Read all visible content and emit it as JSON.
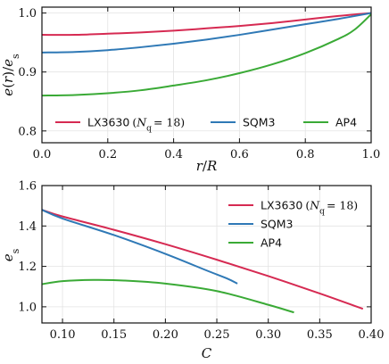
{
  "colors": {
    "LX3630": "#d62a52",
    "SQM3": "#2f79b6",
    "AP4": "#3aaa36"
  },
  "chart_data": [
    {
      "type": "line",
      "xlabel": "r/R",
      "ylabel": "e(r)/e_s",
      "xlim": [
        0.0,
        1.0
      ],
      "ylim": [
        0.78,
        1.01
      ],
      "xticks": [
        "0.0",
        "0.2",
        "0.4",
        "0.6",
        "0.8",
        "1.0"
      ],
      "yticks": [
        "0.8",
        "0.9",
        "1.0"
      ],
      "grid": true,
      "legend": "bottom, horizontal",
      "series": [
        {
          "name": "LX3630",
          "name_suffix": "(N_q = 18)",
          "color_key": "LX3630",
          "x": [
            0.0,
            0.1,
            0.2,
            0.3,
            0.4,
            0.5,
            0.6,
            0.7,
            0.8,
            0.9,
            1.0
          ],
          "y": [
            0.963,
            0.963,
            0.965,
            0.967,
            0.97,
            0.974,
            0.978,
            0.983,
            0.989,
            0.995,
            1.0
          ]
        },
        {
          "name": "SQM3",
          "color_key": "SQM3",
          "x": [
            0.0,
            0.1,
            0.2,
            0.3,
            0.4,
            0.5,
            0.6,
            0.7,
            0.8,
            0.9,
            1.0
          ],
          "y": [
            0.933,
            0.934,
            0.937,
            0.942,
            0.948,
            0.955,
            0.963,
            0.972,
            0.981,
            0.99,
            1.0
          ]
        },
        {
          "name": "AP4",
          "color_key": "AP4",
          "x": [
            0.0,
            0.1,
            0.2,
            0.3,
            0.4,
            0.5,
            0.6,
            0.7,
            0.8,
            0.9,
            0.95,
            1.0
          ],
          "y": [
            0.86,
            0.861,
            0.864,
            0.869,
            0.877,
            0.886,
            0.898,
            0.913,
            0.932,
            0.956,
            0.972,
            0.998
          ]
        }
      ]
    },
    {
      "type": "line",
      "xlabel": "C",
      "ylabel": "e_s",
      "xlim": [
        0.08,
        0.4
      ],
      "ylim": [
        0.92,
        1.6
      ],
      "xticks": [
        "0.10",
        "0.15",
        "0.20",
        "0.25",
        "0.30",
        "0.35",
        "0.40"
      ],
      "yticks": [
        "1.0",
        "1.2",
        "1.4",
        "1.6"
      ],
      "grid": true,
      "legend": "top-right",
      "series": [
        {
          "name": "LX3630",
          "name_suffix": "(N_q = 18)",
          "color_key": "LX3630",
          "x": [
            0.08,
            0.1,
            0.15,
            0.2,
            0.25,
            0.3,
            0.35,
            0.392
          ],
          "y": [
            1.48,
            1.447,
            1.381,
            1.31,
            1.233,
            1.152,
            1.066,
            0.99
          ]
        },
        {
          "name": "SQM3",
          "color_key": "SQM3",
          "x": [
            0.08,
            0.1,
            0.15,
            0.2,
            0.24,
            0.26,
            0.27
          ],
          "y": [
            1.48,
            1.437,
            1.355,
            1.262,
            1.18,
            1.14,
            1.115
          ]
        },
        {
          "name": "AP4",
          "color_key": "AP4",
          "x": [
            0.08,
            0.1,
            0.13,
            0.16,
            0.2,
            0.25,
            0.3,
            0.325
          ],
          "y": [
            1.112,
            1.127,
            1.133,
            1.13,
            1.115,
            1.078,
            1.01,
            0.972
          ]
        }
      ]
    }
  ]
}
